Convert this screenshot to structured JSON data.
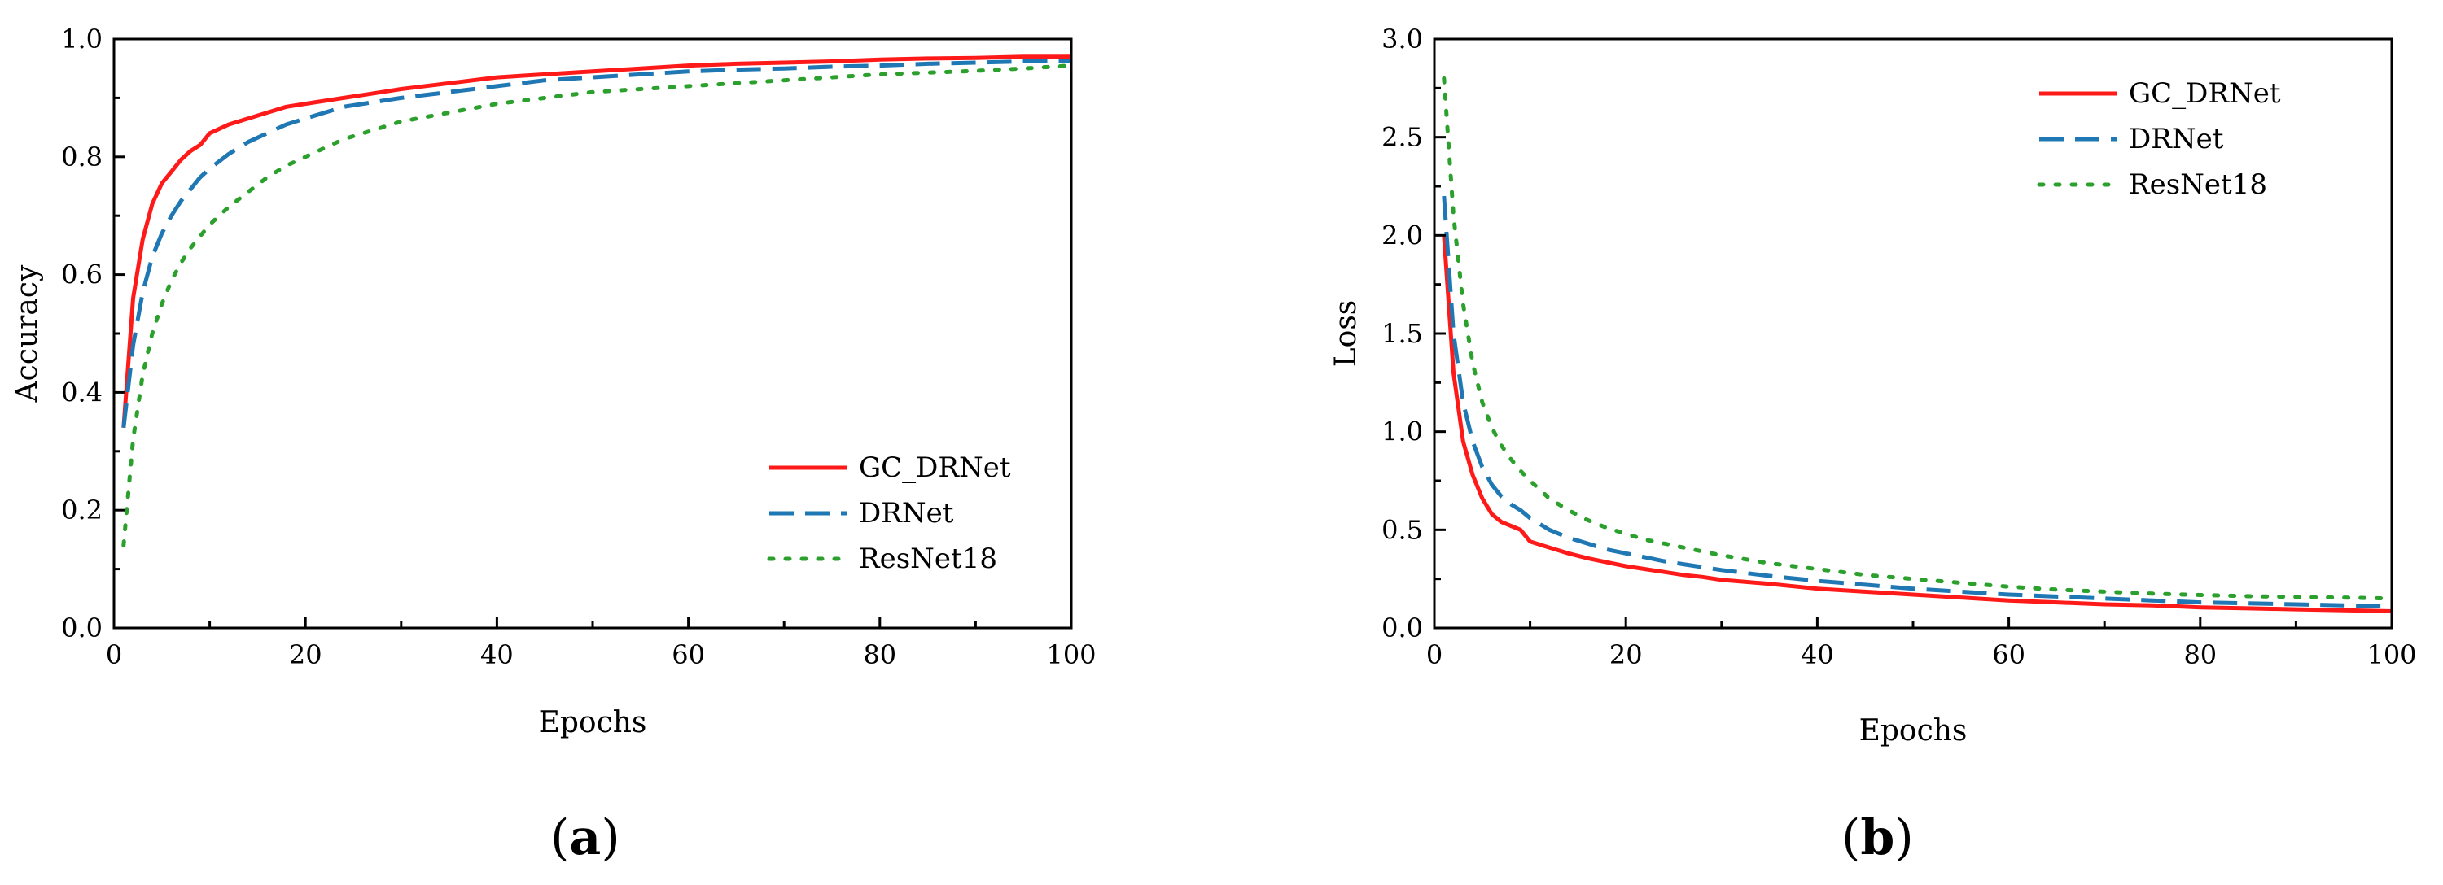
{
  "chart_data": [
    {
      "type": "line",
      "panel_label": "a",
      "title": "",
      "xlabel": "Epochs",
      "ylabel": "Accuracy",
      "xlim": [
        0,
        100
      ],
      "ylim": [
        0,
        1.0
      ],
      "xticks": [
        "0",
        "20",
        "40",
        "60",
        "80",
        "100"
      ],
      "yticks": [
        "0.0",
        "0.2",
        "0.4",
        "0.6",
        "0.8",
        "1.0"
      ],
      "legend_position": "bottom-right",
      "grid": false,
      "series": [
        {
          "name": "GC_DRNet",
          "color": "#ff1a1a",
          "style": "solid",
          "x": [
            1,
            2,
            3,
            4,
            5,
            6,
            7,
            8,
            9,
            10,
            12,
            14,
            16,
            18,
            20,
            22,
            24,
            26,
            28,
            30,
            35,
            40,
            45,
            50,
            55,
            60,
            65,
            70,
            75,
            80,
            85,
            90,
            95,
            100
          ],
          "values": [
            0.34,
            0.56,
            0.66,
            0.72,
            0.755,
            0.775,
            0.795,
            0.81,
            0.82,
            0.84,
            0.855,
            0.865,
            0.875,
            0.885,
            0.89,
            0.895,
            0.9,
            0.905,
            0.91,
            0.915,
            0.925,
            0.935,
            0.94,
            0.945,
            0.95,
            0.955,
            0.958,
            0.96,
            0.962,
            0.965,
            0.967,
            0.968,
            0.97,
            0.97
          ]
        },
        {
          "name": "DRNet",
          "color": "#1f77b4",
          "style": "dashed",
          "x": [
            1,
            2,
            3,
            4,
            5,
            6,
            7,
            8,
            9,
            10,
            12,
            14,
            16,
            18,
            20,
            22,
            24,
            26,
            28,
            30,
            35,
            40,
            45,
            50,
            55,
            60,
            65,
            70,
            75,
            80,
            85,
            90,
            95,
            100
          ],
          "values": [
            0.34,
            0.48,
            0.57,
            0.63,
            0.67,
            0.7,
            0.725,
            0.745,
            0.765,
            0.78,
            0.805,
            0.825,
            0.84,
            0.855,
            0.865,
            0.875,
            0.885,
            0.89,
            0.895,
            0.9,
            0.91,
            0.92,
            0.93,
            0.935,
            0.94,
            0.945,
            0.948,
            0.95,
            0.953,
            0.955,
            0.958,
            0.96,
            0.962,
            0.963
          ]
        },
        {
          "name": "ResNet18",
          "color": "#2ca02c",
          "style": "dotted",
          "x": [
            1,
            2,
            3,
            4,
            5,
            6,
            7,
            8,
            9,
            10,
            12,
            14,
            16,
            18,
            20,
            22,
            24,
            26,
            28,
            30,
            35,
            40,
            45,
            50,
            55,
            60,
            65,
            70,
            75,
            80,
            85,
            90,
            95,
            100
          ],
          "values": [
            0.14,
            0.32,
            0.43,
            0.5,
            0.55,
            0.59,
            0.62,
            0.645,
            0.665,
            0.685,
            0.715,
            0.74,
            0.765,
            0.785,
            0.8,
            0.815,
            0.83,
            0.84,
            0.85,
            0.86,
            0.875,
            0.89,
            0.9,
            0.91,
            0.915,
            0.92,
            0.925,
            0.93,
            0.935,
            0.94,
            0.943,
            0.946,
            0.95,
            0.955
          ]
        }
      ]
    },
    {
      "type": "line",
      "panel_label": "b",
      "title": "",
      "xlabel": "Epochs",
      "ylabel": "Loss",
      "xlim": [
        0,
        100
      ],
      "ylim": [
        0,
        3.0
      ],
      "xticks": [
        "0",
        "20",
        "40",
        "60",
        "80",
        "100"
      ],
      "yticks": [
        "0.0",
        "0.5",
        "1.0",
        "1.5",
        "2.0",
        "2.5",
        "3.0"
      ],
      "legend_position": "top-right",
      "grid": false,
      "series": [
        {
          "name": "GC_DRNet",
          "color": "#ff1a1a",
          "style": "solid",
          "x": [
            1,
            2,
            3,
            4,
            5,
            6,
            7,
            8,
            9,
            10,
            12,
            14,
            16,
            18,
            20,
            22,
            24,
            26,
            28,
            30,
            35,
            40,
            45,
            50,
            55,
            60,
            65,
            70,
            75,
            80,
            85,
            90,
            95,
            100
          ],
          "values": [
            2.0,
            1.3,
            0.95,
            0.78,
            0.66,
            0.58,
            0.54,
            0.52,
            0.5,
            0.44,
            0.41,
            0.38,
            0.355,
            0.335,
            0.315,
            0.3,
            0.285,
            0.27,
            0.26,
            0.245,
            0.225,
            0.2,
            0.185,
            0.17,
            0.155,
            0.14,
            0.13,
            0.12,
            0.115,
            0.105,
            0.1,
            0.095,
            0.09,
            0.085
          ]
        },
        {
          "name": "DRNet",
          "color": "#1f77b4",
          "style": "dashed",
          "x": [
            1,
            2,
            3,
            4,
            5,
            6,
            7,
            8,
            9,
            10,
            12,
            14,
            16,
            18,
            20,
            22,
            24,
            26,
            28,
            30,
            35,
            40,
            45,
            50,
            55,
            60,
            65,
            70,
            75,
            80,
            85,
            90,
            95,
            100
          ],
          "values": [
            2.2,
            1.5,
            1.15,
            0.95,
            0.82,
            0.73,
            0.67,
            0.63,
            0.6,
            0.56,
            0.5,
            0.46,
            0.43,
            0.4,
            0.38,
            0.36,
            0.34,
            0.325,
            0.31,
            0.295,
            0.265,
            0.24,
            0.22,
            0.2,
            0.185,
            0.17,
            0.16,
            0.15,
            0.14,
            0.13,
            0.125,
            0.12,
            0.115,
            0.11
          ]
        },
        {
          "name": "ResNet18",
          "color": "#2ca02c",
          "style": "dotted",
          "x": [
            1,
            2,
            3,
            4,
            5,
            6,
            7,
            8,
            9,
            10,
            12,
            14,
            16,
            18,
            20,
            22,
            24,
            26,
            28,
            30,
            35,
            40,
            45,
            50,
            55,
            60,
            65,
            70,
            75,
            80,
            85,
            90,
            95,
            100
          ],
          "values": [
            2.8,
            2.1,
            1.65,
            1.35,
            1.15,
            1.02,
            0.93,
            0.86,
            0.8,
            0.75,
            0.66,
            0.6,
            0.55,
            0.51,
            0.48,
            0.45,
            0.43,
            0.41,
            0.39,
            0.37,
            0.33,
            0.3,
            0.27,
            0.25,
            0.23,
            0.21,
            0.195,
            0.185,
            0.175,
            0.168,
            0.162,
            0.158,
            0.155,
            0.15
          ]
        }
      ]
    }
  ]
}
